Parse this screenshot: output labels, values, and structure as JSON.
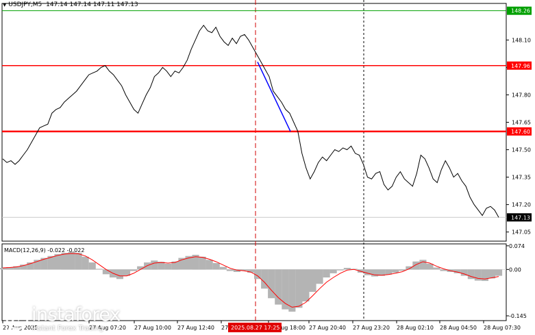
{
  "window": {
    "title": "USDJPY,M5",
    "ohlc": "147.14 147.14 147.11 147.13"
  },
  "price_axis": {
    "ticks": [
      "148.10",
      "147.95",
      "147.80",
      "147.65",
      "147.50",
      "147.35",
      "147.20",
      "147.05"
    ],
    "tick_values": [
      148.1,
      147.95,
      147.8,
      147.65,
      147.5,
      147.35,
      147.2,
      147.05
    ]
  },
  "levels": [
    {
      "label": "148.26",
      "value": 148.26,
      "color": "#00a000"
    },
    {
      "label": "147.96",
      "value": 147.96,
      "color": "#ff0000"
    },
    {
      "label": "147.60",
      "value": 147.6,
      "color": "#ff0000"
    },
    {
      "label": "147.13",
      "value": 147.13,
      "color": "#000000"
    }
  ],
  "time_axis": {
    "labels": [
      "27 Aug 2025",
      "27 Aug 07:20",
      "27 Aug 10:00",
      "27 Aug 12:40",
      "27 Aug 15:",
      "27 Aug 18:00",
      "27 Aug 20:40",
      "27 Aug 23:20",
      "28 Aug 02:10",
      "28 Aug 04:50",
      "28 Aug 07:30"
    ],
    "highlight": "2025.08.27 17:25"
  },
  "macd": {
    "title": "MACD(12,26,9) -0.022 -0.022",
    "ticks": [
      "0.074",
      "0.00",
      "-0.145"
    ],
    "tick_values": [
      0.074,
      0.0,
      -0.145
    ]
  },
  "watermark": {
    "name": "instaforex",
    "tagline": "Instant Forex Trading"
  },
  "colors": {
    "price_line": "#000000",
    "trend_line": "#0000ff",
    "signal_line": "#ff0000",
    "histogram": "#b4b4b4",
    "support": "#ff0000",
    "resistance": "#ff0000",
    "target": "#00a000"
  },
  "chart_data": [
    {
      "type": "line",
      "series": [
        {
          "name": "USDJPY,M5",
          "values": [
            147.45,
            147.43,
            147.44,
            147.42,
            147.44,
            147.47,
            147.5,
            147.54,
            147.58,
            147.62,
            147.63,
            147.64,
            147.7,
            147.72,
            147.73,
            147.76,
            147.78,
            147.8,
            147.82,
            147.85,
            147.88,
            147.91,
            147.92,
            147.93,
            147.95,
            147.96,
            147.93,
            147.91,
            147.88,
            147.85,
            147.8,
            147.76,
            147.72,
            147.7,
            147.75,
            147.8,
            147.84,
            147.9,
            147.92,
            147.95,
            147.93,
            147.9,
            147.93,
            147.92,
            147.95,
            147.99,
            148.05,
            148.1,
            148.15,
            148.18,
            148.15,
            148.14,
            148.17,
            148.12,
            148.09,
            148.07,
            148.11,
            148.08,
            148.12,
            148.13,
            148.1,
            148.06,
            148.02,
            147.98,
            147.94,
            147.9,
            147.82,
            147.79,
            147.76,
            147.72,
            147.7,
            147.65,
            147.6,
            147.48,
            147.4,
            147.34,
            147.38,
            147.43,
            147.46,
            147.44,
            147.47,
            147.5,
            147.49,
            147.51,
            147.5,
            147.52,
            147.48,
            147.47,
            147.42,
            147.35,
            147.34,
            147.37,
            147.38,
            147.31,
            147.28,
            147.3,
            147.35,
            147.38,
            147.34,
            147.32,
            147.3,
            147.37,
            147.47,
            147.45,
            147.4,
            147.34,
            147.32,
            147.39,
            147.44,
            147.4,
            147.35,
            147.37,
            147.33,
            147.3,
            147.24,
            147.2,
            147.17,
            147.14,
            147.18,
            147.19,
            147.17,
            147.13
          ]
        }
      ],
      "ylim": [
        147.0,
        148.3
      ],
      "levels": [
        148.26,
        147.96,
        147.6,
        147.13
      ],
      "trend_segment": {
        "from": 147.98,
        "to": 147.6
      }
    },
    {
      "type": "bar",
      "series": [
        {
          "name": "histogram",
          "values": [
            0.005,
            0.007,
            0.01,
            0.015,
            0.022,
            0.03,
            0.036,
            0.042,
            0.048,
            0.052,
            0.055,
            0.052,
            0.04,
            0.022,
            0.002,
            -0.015,
            -0.025,
            -0.03,
            -0.02,
            -0.005,
            0.01,
            0.022,
            0.028,
            0.024,
            0.018,
            0.025,
            0.036,
            0.042,
            0.046,
            0.04,
            0.03,
            0.02,
            0.008,
            -0.005,
            -0.008,
            -0.004,
            -0.01,
            -0.03,
            -0.06,
            -0.09,
            -0.11,
            -0.125,
            -0.132,
            -0.12,
            -0.1,
            -0.07,
            -0.045,
            -0.025,
            -0.012,
            -0.003,
            0.005,
            0.002,
            -0.01,
            -0.018,
            -0.022,
            -0.02,
            -0.016,
            -0.01,
            -0.004,
            0.01,
            0.025,
            0.03,
            0.018,
            0.006,
            -0.005,
            -0.008,
            -0.012,
            -0.02,
            -0.03,
            -0.035,
            -0.036,
            -0.028,
            -0.02
          ]
        },
        {
          "name": "signal",
          "values": [
            0.005,
            0.006,
            0.008,
            0.012,
            0.018,
            0.025,
            0.032,
            0.038,
            0.044,
            0.048,
            0.05,
            0.049,
            0.042,
            0.03,
            0.015,
            0.0,
            -0.012,
            -0.02,
            -0.02,
            -0.012,
            0.0,
            0.012,
            0.02,
            0.022,
            0.02,
            0.022,
            0.03,
            0.036,
            0.04,
            0.038,
            0.032,
            0.024,
            0.014,
            0.004,
            -0.002,
            -0.004,
            -0.008,
            -0.02,
            -0.04,
            -0.065,
            -0.088,
            -0.106,
            -0.118,
            -0.115,
            -0.103,
            -0.082,
            -0.06,
            -0.04,
            -0.025,
            -0.012,
            -0.002,
            0.0,
            -0.006,
            -0.012,
            -0.017,
            -0.018,
            -0.016,
            -0.012,
            -0.007,
            0.002,
            0.015,
            0.024,
            0.02,
            0.01,
            0.002,
            -0.004,
            -0.008,
            -0.014,
            -0.022,
            -0.028,
            -0.03,
            -0.026,
            -0.022
          ]
        }
      ],
      "ylim": [
        -0.16,
        0.08
      ]
    }
  ]
}
